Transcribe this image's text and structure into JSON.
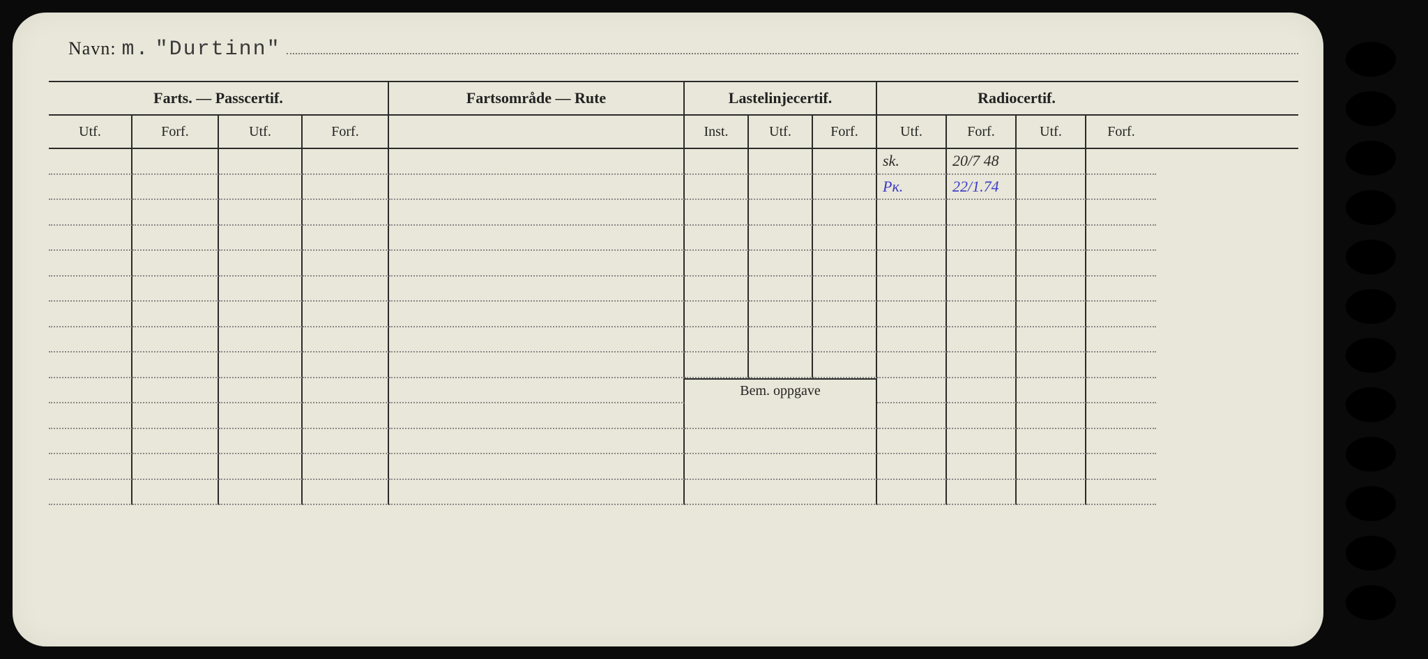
{
  "card": {
    "background_color": "#e9e7d9",
    "ink_color": "#222222",
    "dotted_rule_color": "#888888",
    "handwriting_black": "#2b2b2b",
    "handwriting_blue": "#3a3ac8"
  },
  "navn": {
    "label": "Navn:",
    "prefix": "m.",
    "value": "\"Durtinn\""
  },
  "sections": {
    "farts": {
      "title": "Farts. — Passcertif.",
      "sub": [
        "Utf.",
        "Forf.",
        "Utf.",
        "Forf."
      ]
    },
    "rute": {
      "title": "Fartsområde — Rute"
    },
    "laste": {
      "title": "Lastelinjecertif.",
      "sub": [
        "Inst.",
        "Utf.",
        "Forf."
      ]
    },
    "radio": {
      "title": "Radiocertif.",
      "sub": [
        "Utf.",
        "Forf.",
        "Utf.",
        "Forf."
      ]
    },
    "bem": {
      "title": "Bem. oppgave"
    }
  },
  "entries": {
    "radio": [
      {
        "utf": "sk.",
        "forf": "20/7 48",
        "utf2": "",
        "forf2": "",
        "style": "black"
      },
      {
        "utf": "Рк.",
        "forf": "22/1.74",
        "utf2": "",
        "forf2": "",
        "style": "blue"
      }
    ]
  },
  "layout": {
    "body_rows_before_bem": 9,
    "bem_rows": 4,
    "binder_holes": 12
  }
}
